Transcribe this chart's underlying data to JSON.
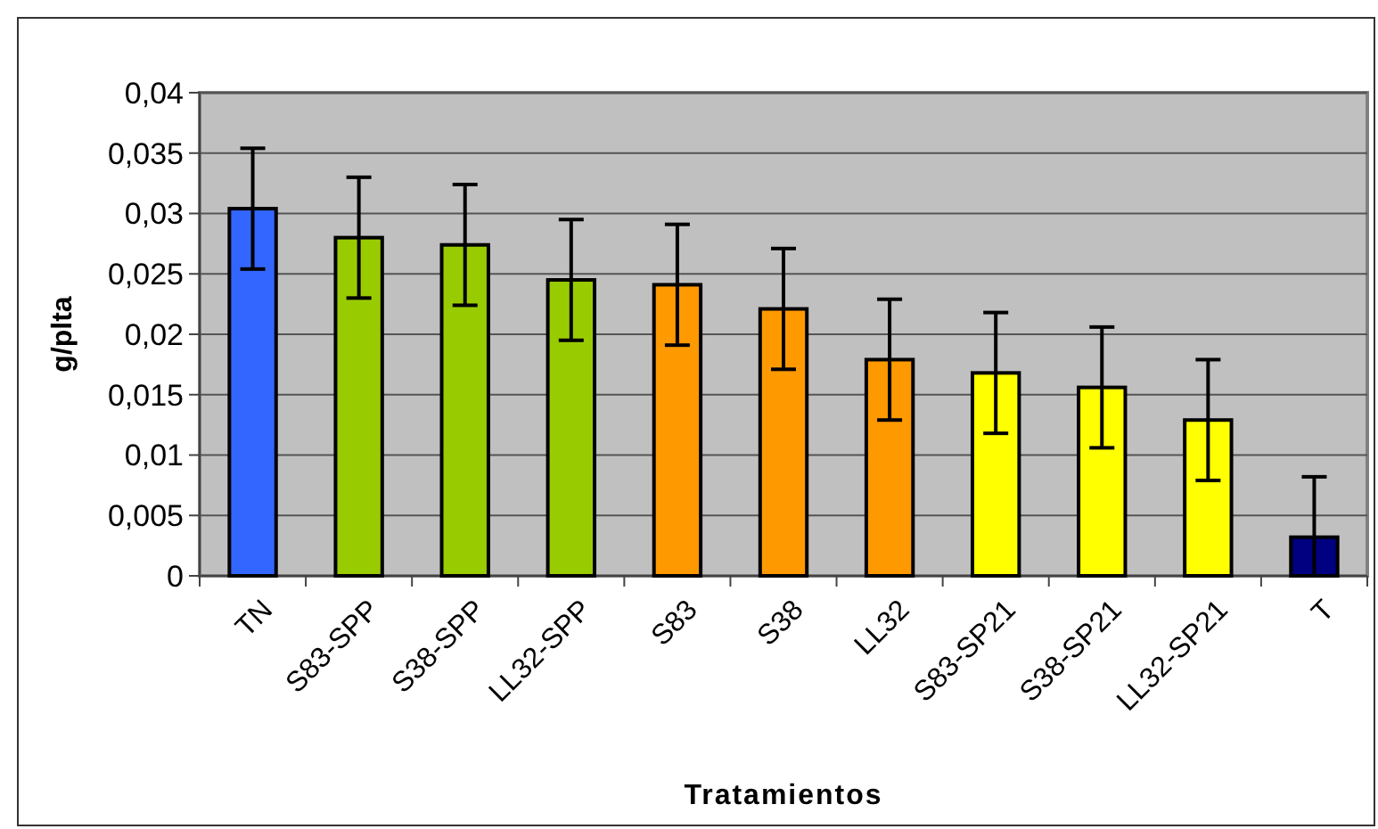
{
  "chart_data": {
    "type": "bar",
    "xlabel": "Tratamientos",
    "ylabel": "g/plta",
    "categories": [
      "TN",
      "S83-SPP",
      "S38-SPP",
      "LL32-SPP",
      "S83",
      "S38",
      "LL32",
      "S83-SP21",
      "S38-SP21",
      "LL32-SP21",
      "T"
    ],
    "values": [
      0.0304,
      0.028,
      0.0274,
      0.0245,
      0.0241,
      0.0221,
      0.0179,
      0.0168,
      0.0156,
      0.0129,
      0.0032
    ],
    "errors": [
      0.005,
      0.005,
      0.005,
      0.005,
      0.005,
      0.005,
      0.005,
      0.005,
      0.005,
      0.005,
      [
        0,
        0.0082
      ]
    ],
    "colors": [
      "#3366ff",
      "#99cc00",
      "#99cc00",
      "#99cc00",
      "#ff9900",
      "#ff9900",
      "#ff9900",
      "#ffff00",
      "#ffff00",
      "#ffff00",
      "#000080"
    ],
    "ylim": [
      0,
      0.04
    ],
    "yticks": [
      {
        "value": 0,
        "label": "0"
      },
      {
        "value": 0.005,
        "label": "0,005"
      },
      {
        "value": 0.01,
        "label": "0,01"
      },
      {
        "value": 0.015,
        "label": "0,015"
      },
      {
        "value": 0.02,
        "label": "0,02"
      },
      {
        "value": 0.025,
        "label": "0,025"
      },
      {
        "value": 0.03,
        "label": "0,03"
      },
      {
        "value": 0.035,
        "label": "0,035"
      },
      {
        "value": 0.04,
        "label": "0,04"
      }
    ],
    "grid": "y"
  }
}
